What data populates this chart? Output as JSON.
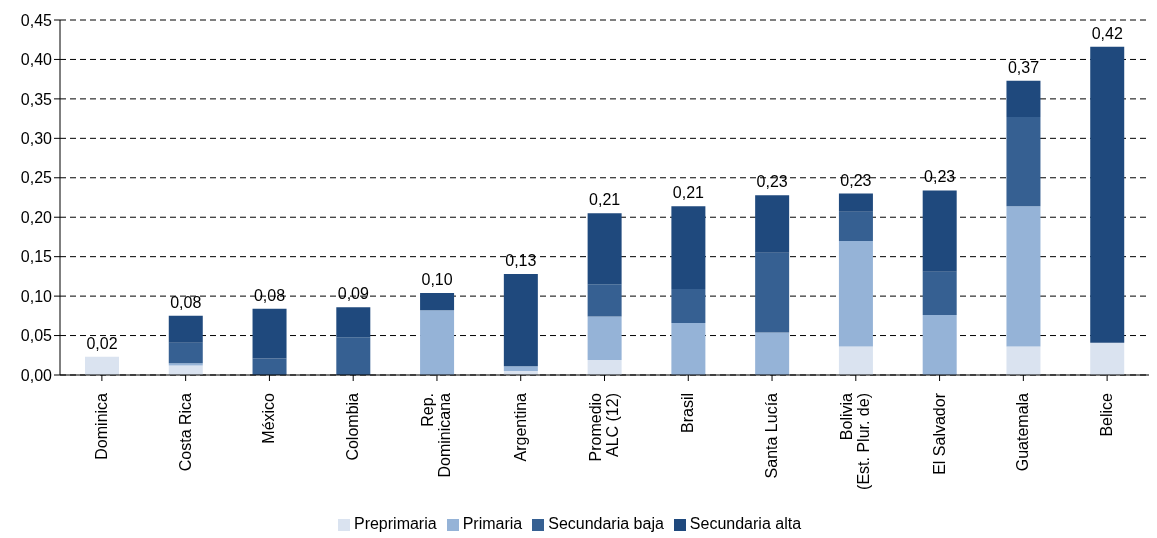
{
  "chart_data": {
    "type": "bar",
    "stacked": true,
    "categories": [
      "Dominica",
      "Costa Rica",
      "México",
      "Colombia",
      "Rep. Dominicana",
      "Argentina",
      "Promedio ALC (12)",
      "Brasil",
      "Santa Lucía",
      "Bolivia (Est. Plur. de)",
      "El Salvador",
      "Guatemala",
      "Belice"
    ],
    "series": [
      {
        "name": "Preprimaria",
        "color": "#dae3f0",
        "values": [
          0.023,
          0.012,
          0,
          0,
          0,
          0.005,
          0.019,
          0,
          0,
          0.036,
          0,
          0.036,
          0.041
        ]
      },
      {
        "name": "Primaria",
        "color": "#95b3d7",
        "values": [
          0,
          0.003,
          0,
          0,
          0.082,
          0.006,
          0.055,
          0.066,
          0.054,
          0.134,
          0.076,
          0.178,
          0
        ]
      },
      {
        "name": "Secundaria baja",
        "color": "#366092",
        "values": [
          0,
          0.026,
          0.021,
          0.048,
          0,
          0,
          0.041,
          0.043,
          0.101,
          0.037,
          0.055,
          0.113,
          0
        ]
      },
      {
        "name": "Secundaria alta",
        "color": "#1f497d",
        "values": [
          0,
          0.034,
          0.063,
          0.038,
          0.022,
          0.117,
          0.09,
          0.105,
          0.073,
          0.023,
          0.103,
          0.046,
          0.375
        ]
      }
    ],
    "totals": [
      "0,02",
      "0,08",
      "0,08",
      "0,09",
      "0,10",
      "0,13",
      "0,21",
      "0,21",
      "0,23",
      "0,23",
      "0,23",
      "0,37",
      "0,42"
    ],
    "ylim": [
      0,
      0.45
    ],
    "yticks": [
      {
        "value": 0,
        "label": "0,00"
      },
      {
        "value": 0.05,
        "label": "0,05"
      },
      {
        "value": 0.1,
        "label": "0,10"
      },
      {
        "value": 0.15,
        "label": "0,15"
      },
      {
        "value": 0.2,
        "label": "0,20"
      },
      {
        "value": 0.25,
        "label": "0,25"
      },
      {
        "value": 0.3,
        "label": "0,30"
      },
      {
        "value": 0.35,
        "label": "0,35"
      },
      {
        "value": 0.4,
        "label": "0,40"
      },
      {
        "value": 0.45,
        "label": "0,45"
      }
    ],
    "grid": "y",
    "legend": "bottom"
  }
}
